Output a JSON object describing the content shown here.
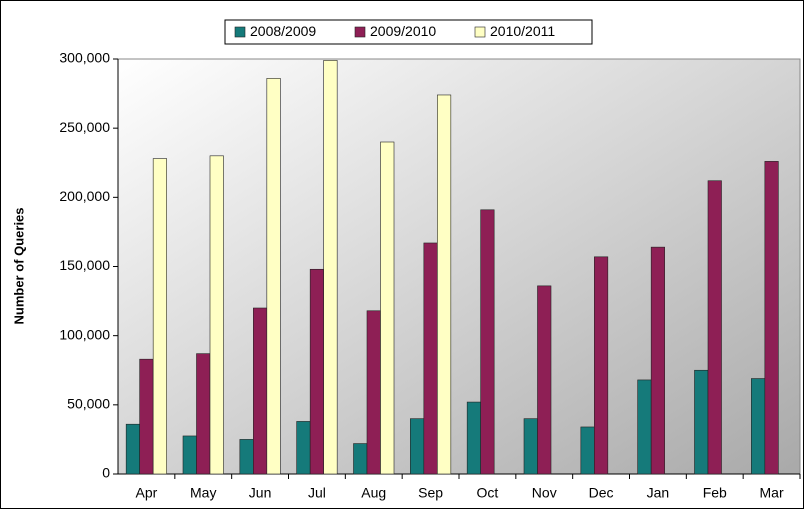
{
  "chart_data": {
    "type": "bar",
    "y_label": "Number of Queries",
    "categories": [
      "Apr",
      "May",
      "Jun",
      "Jul",
      "Aug",
      "Sep",
      "Oct",
      "Nov",
      "Dec",
      "Jan",
      "Feb",
      "Mar"
    ],
    "series": [
      {
        "name": "2008/2009",
        "color": "#157a7a",
        "values": [
          36000,
          27500,
          25000,
          38000,
          22000,
          40000,
          52000,
          40000,
          34000,
          68000,
          75000,
          69000
        ]
      },
      {
        "name": "2009/2010",
        "color": "#8e1f55",
        "values": [
          83000,
          87000,
          120000,
          148000,
          118000,
          167000,
          191000,
          136000,
          157000,
          164000,
          212000,
          226000
        ]
      },
      {
        "name": "2010/2011",
        "color": "#ffffc4",
        "values": [
          228000,
          230000,
          286000,
          299000,
          240000,
          274000,
          null,
          null,
          null,
          null,
          null,
          null
        ]
      }
    ],
    "ylim": [
      0,
      300000
    ],
    "yticks": [
      0,
      {
        "value": 50000,
        "label": "50,000"
      },
      {
        "value": 100000,
        "label": "100,000"
      },
      {
        "value": 150000,
        "label": "150,000"
      },
      {
        "value": 200000,
        "label": "200,000"
      },
      {
        "value": 250000,
        "label": "250,000"
      },
      {
        "value": 300000,
        "label": "300,000"
      }
    ],
    "legend": "top"
  }
}
